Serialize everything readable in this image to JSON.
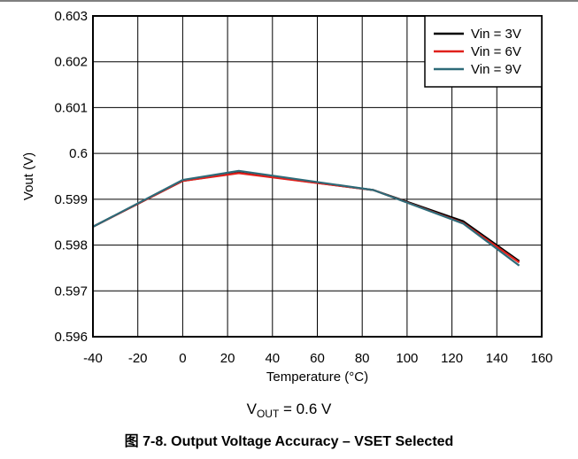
{
  "chart_data": {
    "type": "line",
    "title": "",
    "xlabel": "Temperature (°C)",
    "ylabel": "Vout (V)",
    "xlim": [
      -40,
      160
    ],
    "ylim": [
      0.596,
      0.603
    ],
    "x_ticks": [
      "-40",
      "-20",
      "0",
      "20",
      "40",
      "60",
      "80",
      "100",
      "120",
      "140",
      "160"
    ],
    "y_ticks": [
      "0.596",
      "0.597",
      "0.598",
      "0.599",
      "0.6",
      "0.601",
      "0.602",
      "0.603"
    ],
    "grid": true,
    "legend_position": "top-right",
    "x": [
      -40,
      0,
      25,
      85,
      125,
      150
    ],
    "series": [
      {
        "name": "Vin = 3V",
        "color": "#000000",
        "values": [
          0.5984,
          0.5994,
          0.59958,
          0.5992,
          0.59852,
          0.59765
        ]
      },
      {
        "name": "Vin = 6V",
        "color": "#e0201b",
        "values": [
          0.5984,
          0.5994,
          0.59957,
          0.5992,
          0.59848,
          0.59762
        ]
      },
      {
        "name": "Vin = 9V",
        "color": "#2e6b79",
        "values": [
          0.5984,
          0.59942,
          0.59962,
          0.5992,
          0.59847,
          0.59755
        ]
      }
    ]
  },
  "subtitle": {
    "prefix": "V",
    "sub": "OUT",
    "suffix": " = 0.6 V"
  },
  "caption": "图 7-8. Output Voltage Accuracy – VSET Selected"
}
